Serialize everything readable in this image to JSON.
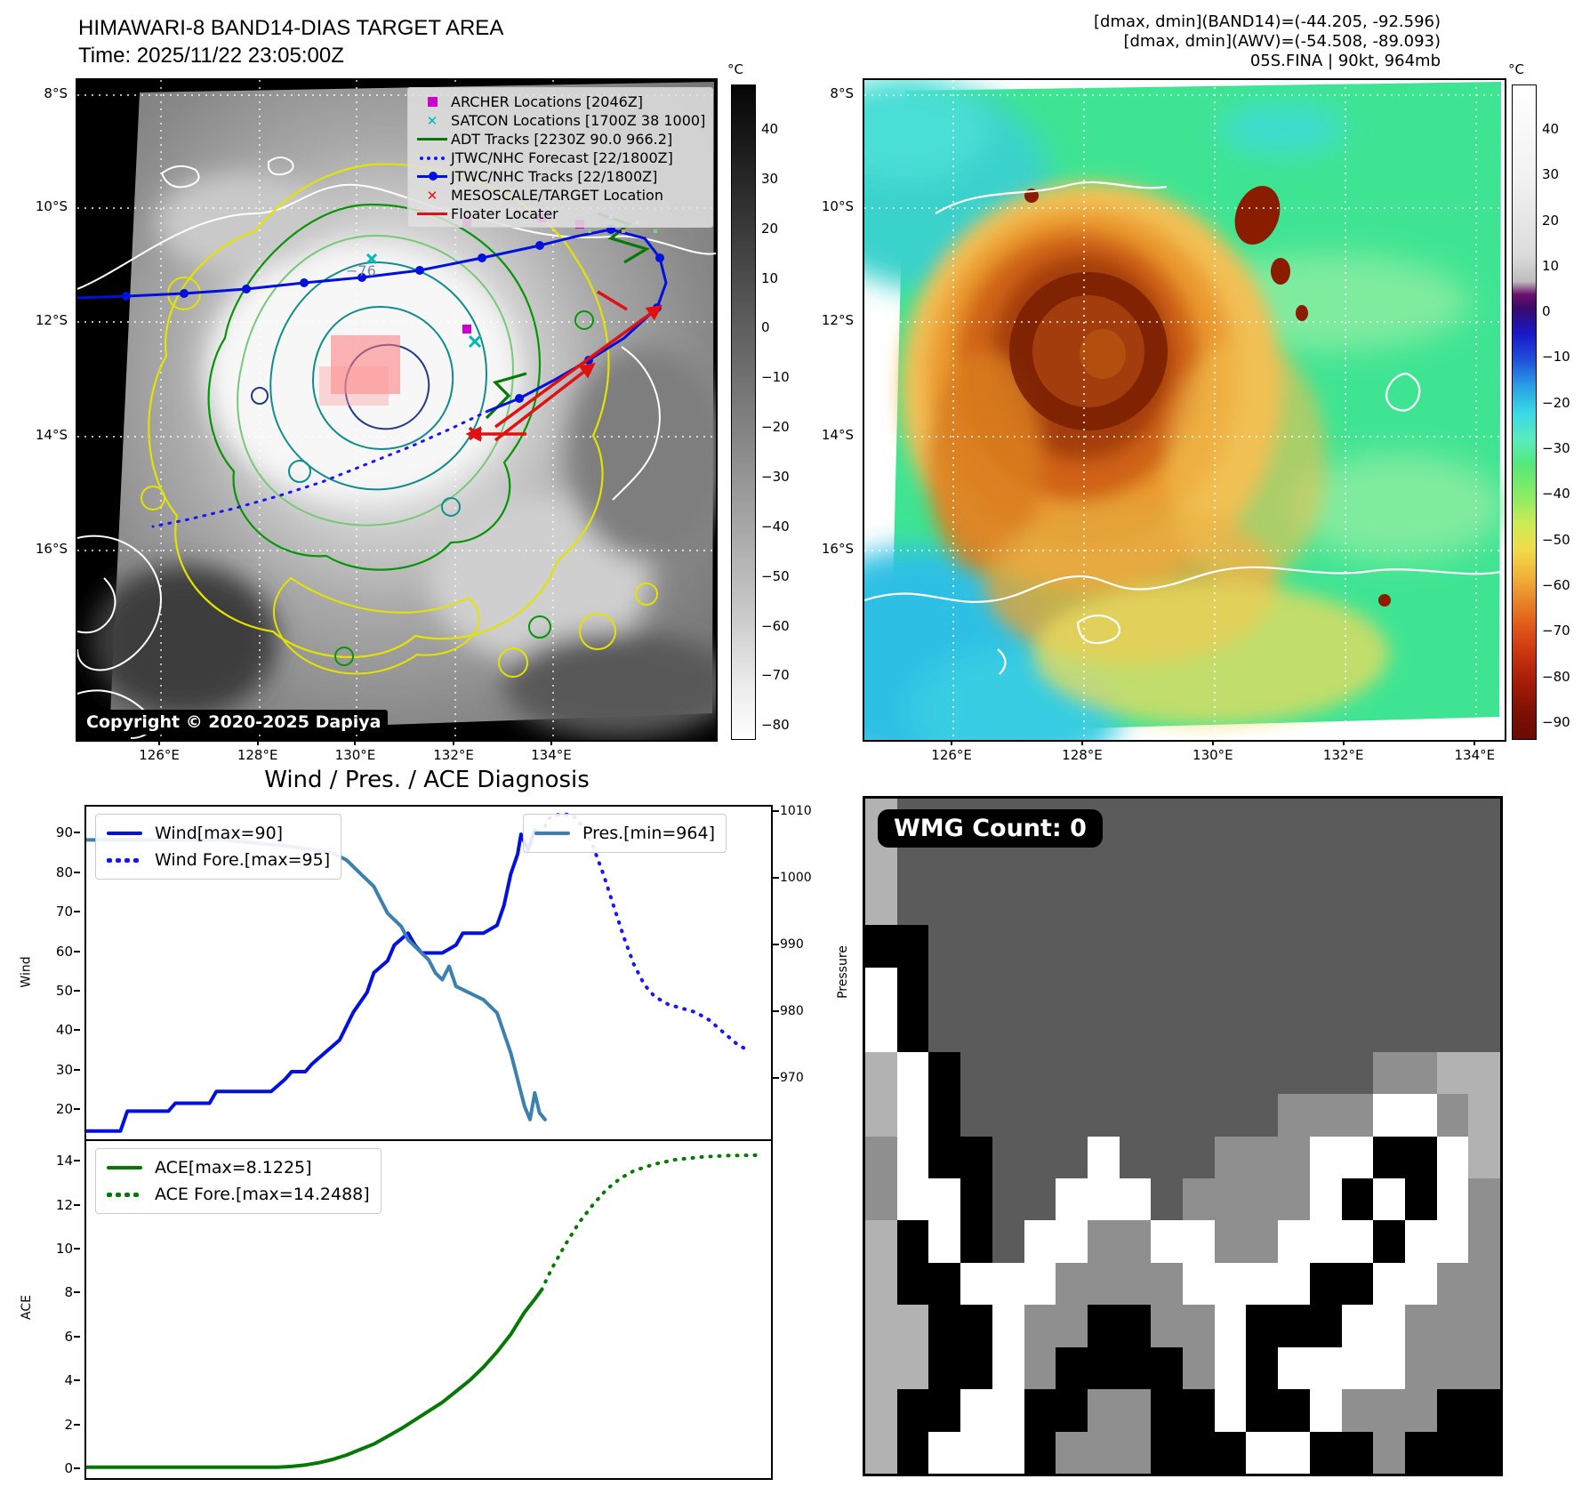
{
  "header_left": {
    "title": "HIMAWARI-8 BAND14-DIAS TARGET AREA",
    "time": "Time: 2025/11/22 23:05:00Z"
  },
  "header_right": {
    "line1": "[dmax, dmin](BAND14)=(-44.205, -92.596)",
    "line2": "[dmax, dmin](AWV)=(-54.508, -89.093)",
    "line3": "05S.FINA | 90kt, 964mb"
  },
  "maps": {
    "lat_labels": [
      "8°S",
      "10°S",
      "12°S",
      "14°S",
      "16°S"
    ],
    "lon_labels": [
      "126°E",
      "128°E",
      "130°E",
      "132°E",
      "134°E"
    ],
    "left": {
      "copyright": "Copyright © 2020-2025 Dapiya",
      "annotation": "−76",
      "legend": [
        {
          "label": "ARCHER Locations [2046Z]",
          "marker": "square",
          "color": "#cc00cc"
        },
        {
          "label": "SATCON Locations [1700Z 38 1000]",
          "marker": "x",
          "color": "#00b8b8"
        },
        {
          "label": "ADT Tracks [2230Z 90.0 966.2]",
          "marker": "line",
          "color": "#067806"
        },
        {
          "label": "JTWC/NHC Forecast [22/1800Z]",
          "marker": "dotted",
          "color": "#1515ff"
        },
        {
          "label": "JTWC/NHC Tracks [22/1800Z]",
          "marker": "line-dot",
          "color": "#0010dd"
        },
        {
          "label": "MESOSCALE/TARGET Location",
          "marker": "x",
          "color": "#ee1111"
        },
        {
          "label": "Floater Locater",
          "marker": "line",
          "color": "#dd1111"
        }
      ],
      "colorbar": {
        "unit": "°C",
        "ticks": [
          "40",
          "30",
          "20",
          "10",
          "0",
          "−10",
          "−20",
          "−30",
          "−40",
          "−50",
          "−60",
          "−70",
          "−80"
        ]
      }
    },
    "right": {
      "colorbar": {
        "unit": "°C",
        "ticks": [
          "40",
          "30",
          "20",
          "10",
          "0",
          "−10",
          "−20",
          "−30",
          "−40",
          "−50",
          "−60",
          "−70",
          "−80",
          "−90"
        ]
      }
    }
  },
  "wmg": {
    "badge": "WMG Count: 0",
    "palette": {
      "D": "#5b5b5b",
      "M": "#8f8f8f",
      "L": "#b2b2b2",
      "W": "#ffffff",
      "B": "#000000"
    },
    "rows": [
      "LDDDDDDDDDDDDDDDDDDD",
      "LDDDDDDDDDDDDDDDDDDD",
      "LDDDDDDDDDDDDDDDDDDD",
      "BBDDDDDDDDDDDDDDDDDD",
      "WBDDDDDDDDDDDDDDDDDD",
      "WBDDDDDDDDDDDDDDDDDD",
      "LWBDDDDDDDDDDDDDMMLL",
      "LWBDDDDDDDDDDMMMWWML",
      "MWBBDDDWDDDMMMWWBBWL",
      "MWWBDDWWWDMMMMWBWBWM",
      "LBWBDWWMMWWMMWWWBWWM",
      "LBBWWWMMMMWWWWBBWWMM",
      "LLBBWMMBBMMWBBBWWMMM",
      "LLBBWMBBBBMWBWWWWMMM",
      "LBBWWBBMMBBWBBWMMMBB",
      "LBWWWBMMMBBBWWBBMBBB"
    ]
  },
  "chart_data": [
    {
      "type": "line",
      "panel": "wind-pressure",
      "title": "Wind / Pres. / ACE Diagnosis",
      "ylabel_left": "Wind",
      "ylabel_right": "Pressure",
      "y_ticks_left": [
        90,
        80,
        70,
        60,
        50,
        40,
        30,
        20
      ],
      "y_ticks_right": [
        1010,
        1000,
        990,
        980,
        970
      ],
      "ylim_left": [
        12,
        97
      ],
      "ylim_right": [
        960.5,
        1011
      ],
      "xlim": [
        0,
        100
      ],
      "grid": false,
      "legend_positions": {
        "wind": "upper left",
        "pressure": "upper right"
      },
      "series": [
        {
          "name": "Wind[max=90]",
          "axis": "left",
          "style": "solid",
          "color": "#0010dd",
          "points": [
            [
              0,
              15
            ],
            [
              5,
              15
            ],
            [
              6,
              20
            ],
            [
              12,
              20
            ],
            [
              13,
              22
            ],
            [
              18,
              22
            ],
            [
              19,
              25
            ],
            [
              27,
              25
            ],
            [
              29,
              28
            ],
            [
              30,
              30
            ],
            [
              32,
              30
            ],
            [
              33,
              32
            ],
            [
              35,
              35
            ],
            [
              37,
              38
            ],
            [
              39,
              45
            ],
            [
              41,
              50
            ],
            [
              42,
              55
            ],
            [
              44,
              58
            ],
            [
              45,
              62
            ],
            [
              47,
              65
            ],
            [
              48,
              62
            ],
            [
              49,
              60
            ],
            [
              52,
              60
            ],
            [
              54,
              62
            ],
            [
              55,
              65
            ],
            [
              58,
              65
            ],
            [
              60,
              67
            ],
            [
              61,
              72
            ],
            [
              62,
              80
            ],
            [
              63,
              85
            ],
            [
              63.5,
              90
            ],
            [
              64.5,
              86
            ],
            [
              65.5,
              91
            ],
            [
              66.5,
              90
            ]
          ]
        },
        {
          "name": "Wind Fore.[max=95]",
          "axis": "left",
          "style": "dotted",
          "color": "#1515ff",
          "points": [
            [
              66.5,
              90
            ],
            [
              67.5,
              94
            ],
            [
              69,
              95
            ],
            [
              71,
              95
            ],
            [
              72.5,
              92
            ],
            [
              74,
              87
            ],
            [
              75.5,
              80
            ],
            [
              77,
              72
            ],
            [
              78.5,
              64
            ],
            [
              80,
              57
            ],
            [
              81.5,
              52
            ],
            [
              83,
              49
            ],
            [
              85,
              47
            ],
            [
              87,
              46
            ],
            [
              89,
              45
            ],
            [
              91,
              43
            ],
            [
              93,
              40
            ],
            [
              95,
              37
            ],
            [
              97,
              35
            ]
          ]
        },
        {
          "name": "Pres.[min=964]",
          "axis": "right",
          "style": "solid",
          "color": "#3d7fae",
          "points": [
            [
              0,
              1006
            ],
            [
              6,
              1006
            ],
            [
              12,
              1006
            ],
            [
              20,
              1006
            ],
            [
              30,
              1005
            ],
            [
              36,
              1004
            ],
            [
              38,
              1003
            ],
            [
              40,
              1001
            ],
            [
              42,
              999
            ],
            [
              43,
              997
            ],
            [
              44,
              995
            ],
            [
              46,
              993
            ],
            [
              47,
              991
            ],
            [
              48,
              990
            ],
            [
              50,
              988
            ],
            [
              51,
              986
            ],
            [
              52,
              985
            ],
            [
              53,
              987
            ],
            [
              54,
              984
            ],
            [
              56,
              983
            ],
            [
              58,
              982
            ],
            [
              60,
              980
            ],
            [
              61,
              977
            ],
            [
              62,
              974
            ],
            [
              63,
              970
            ],
            [
              64,
              966
            ],
            [
              64.8,
              964
            ],
            [
              65.5,
              968
            ],
            [
              66.2,
              965
            ],
            [
              67,
              964
            ]
          ]
        }
      ]
    },
    {
      "type": "line",
      "panel": "ace",
      "ylabel_left": "ACE",
      "y_ticks_left": [
        14,
        12,
        10,
        8,
        6,
        4,
        2,
        0
      ],
      "ylim_left": [
        -0.45,
        14.9
      ],
      "xlim": [
        0,
        100
      ],
      "grid": false,
      "series": [
        {
          "name": "ACE[max=8.1225]",
          "axis": "left",
          "style": "solid",
          "color": "#067806",
          "points": [
            [
              0,
              0.05
            ],
            [
              28,
              0.05
            ],
            [
              30,
              0.08
            ],
            [
              32,
              0.15
            ],
            [
              34,
              0.25
            ],
            [
              36,
              0.4
            ],
            [
              38,
              0.6
            ],
            [
              40,
              0.85
            ],
            [
              42,
              1.1
            ],
            [
              44,
              1.45
            ],
            [
              46,
              1.8
            ],
            [
              48,
              2.2
            ],
            [
              50,
              2.6
            ],
            [
              52,
              3.0
            ],
            [
              54,
              3.5
            ],
            [
              56,
              4.0
            ],
            [
              58,
              4.6
            ],
            [
              60,
              5.3
            ],
            [
              62,
              6.1
            ],
            [
              64,
              7.1
            ],
            [
              65.5,
              7.7
            ],
            [
              66.5,
              8.1225
            ]
          ]
        },
        {
          "name": "ACE Fore.[max=14.2488]",
          "axis": "left",
          "style": "dotted",
          "color": "#067806",
          "points": [
            [
              66.5,
              8.1225
            ],
            [
              68,
              9.1
            ],
            [
              70,
              10.2
            ],
            [
              72,
              11.2
            ],
            [
              74,
              12.0
            ],
            [
              76,
              12.7
            ],
            [
              78,
              13.2
            ],
            [
              80,
              13.55
            ],
            [
              83,
              13.85
            ],
            [
              86,
              14.05
            ],
            [
              90,
              14.18
            ],
            [
              94,
              14.24
            ],
            [
              98,
              14.25
            ]
          ]
        }
      ]
    }
  ]
}
